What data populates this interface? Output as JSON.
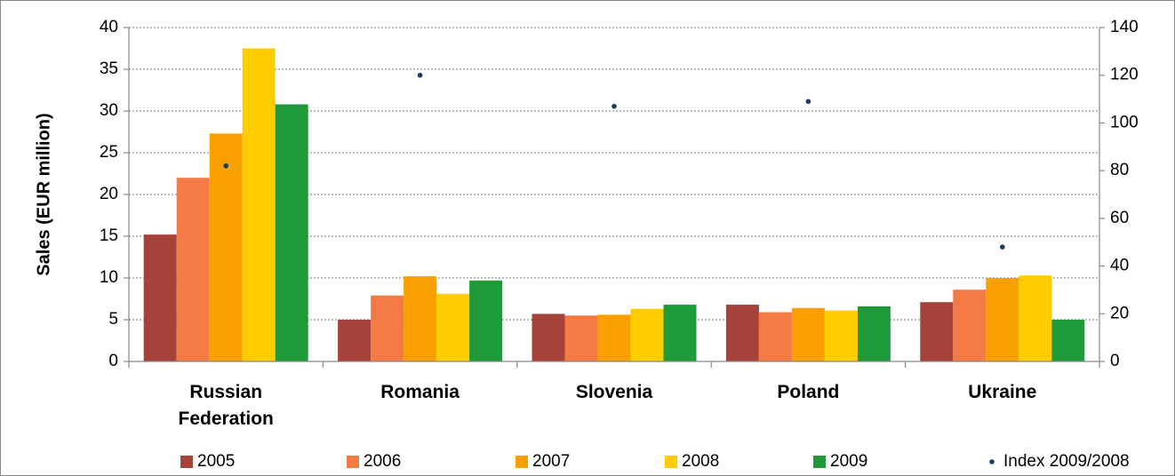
{
  "chart_data": {
    "type": "bar",
    "y_label": "Sales (EUR million)",
    "categories": [
      "Russian Federation",
      "Romania",
      "Slovenia",
      "Poland",
      "Ukraine"
    ],
    "series": [
      {
        "name": "2005",
        "color": "#a5433a",
        "values": [
          15.2,
          5.0,
          5.7,
          6.8,
          7.1
        ]
      },
      {
        "name": "2006",
        "color": "#f47b45",
        "values": [
          22,
          7.9,
          5.5,
          5.9,
          8.6
        ]
      },
      {
        "name": "2007",
        "color": "#f7a000",
        "values": [
          27.3,
          10.2,
          5.6,
          6.4,
          10.0
        ]
      },
      {
        "name": "2008",
        "color": "#ffcc00",
        "values": [
          37.5,
          8.1,
          6.3,
          6.1,
          10.3
        ]
      },
      {
        "name": "2009",
        "color": "#1f9a3a",
        "values": [
          30.8,
          9.7,
          6.8,
          6.6,
          5.0
        ]
      },
      {
        "name": "Index 2009/2008",
        "color": "#1f3864",
        "type": "scatter",
        "axis": "y2",
        "values": [
          82,
          120,
          107,
          109,
          48
        ]
      }
    ],
    "ylim": [
      0,
      40
    ],
    "yticks": [
      0,
      5,
      10,
      15,
      20,
      25,
      30,
      35,
      40
    ],
    "y2lim": [
      0,
      140
    ],
    "y2ticks": [
      0,
      20,
      40,
      60,
      80,
      100,
      120,
      140
    ],
    "grid": true,
    "legend": "bottom"
  }
}
